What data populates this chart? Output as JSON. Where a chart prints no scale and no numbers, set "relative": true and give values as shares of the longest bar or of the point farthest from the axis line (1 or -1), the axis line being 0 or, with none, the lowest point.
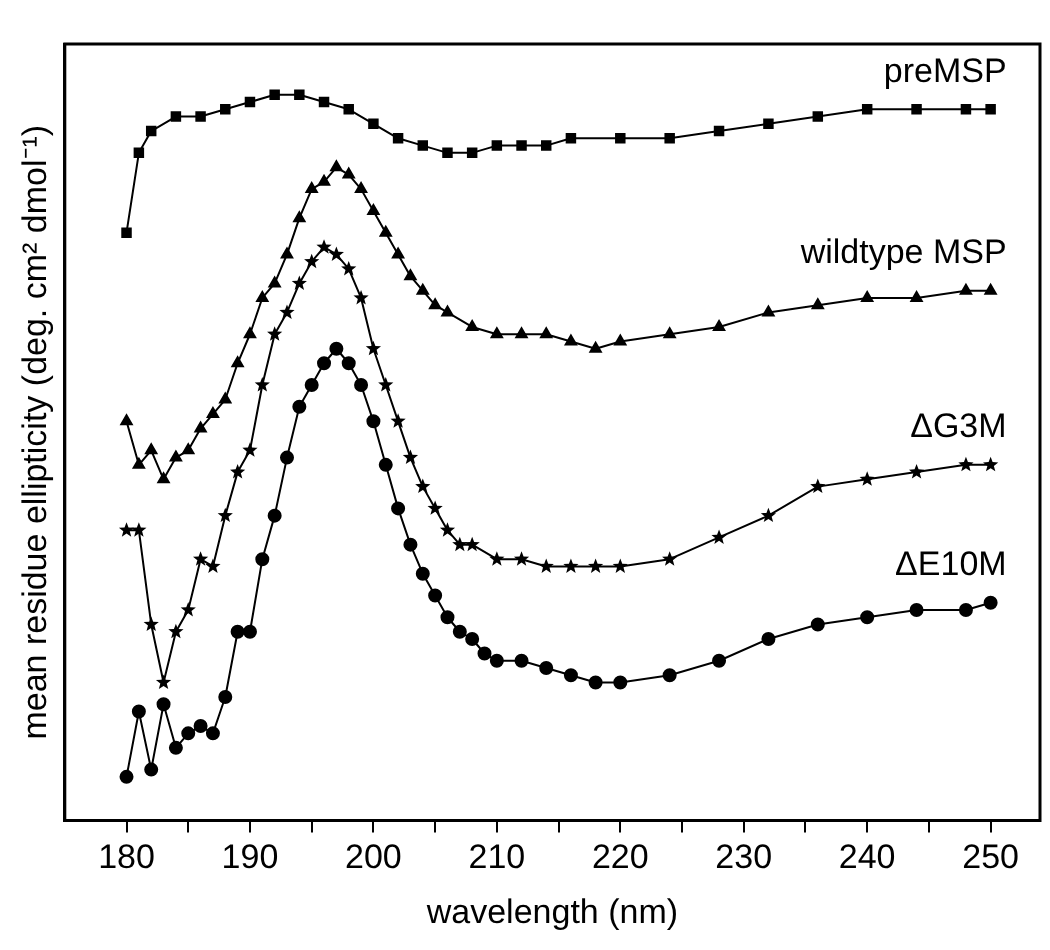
{
  "chart_data": {
    "type": "line",
    "relative": true,
    "xlabel": "wavelength (nm)",
    "ylabel": "mean residue ellipticity (deg. cm² dmol⁻¹)",
    "xlim": [
      175,
      254
    ],
    "xticks": [
      180,
      {
        "value": 185,
        "label": null
      },
      190,
      {
        "value": 195,
        "label": null
      },
      200,
      {
        "value": 205,
        "label": null
      },
      210,
      {
        "value": 215,
        "label": null
      },
      220,
      {
        "value": 225,
        "label": null
      },
      230,
      {
        "value": 235,
        "label": null
      },
      240,
      {
        "value": 245,
        "label": null
      },
      250
    ],
    "grid": false,
    "legend": false,
    "line_style": "solid",
    "series": [
      {
        "name": "preMSP",
        "color": "#000000",
        "marker": "square",
        "x": [
          180,
          181,
          182,
          184,
          186,
          188,
          190,
          192,
          194,
          196,
          198,
          200,
          202,
          204,
          206,
          208,
          210,
          212,
          214,
          216,
          220,
          224,
          228,
          232,
          236,
          240,
          244,
          248,
          250
        ],
        "values": [
          0.81,
          0.92,
          0.95,
          0.97,
          0.97,
          0.98,
          0.99,
          1.0,
          1.0,
          0.99,
          0.98,
          0.96,
          0.94,
          0.93,
          0.92,
          0.92,
          0.93,
          0.93,
          0.93,
          0.94,
          0.94,
          0.94,
          0.95,
          0.96,
          0.97,
          0.98,
          0.98,
          0.98,
          0.98
        ]
      },
      {
        "name": "wildtype MSP",
        "color": "#000000",
        "marker": "triangle",
        "x": [
          180,
          181,
          182,
          183,
          184,
          185,
          186,
          187,
          188,
          189,
          190,
          191,
          192,
          193,
          194,
          195,
          196,
          197,
          198,
          199,
          200,
          201,
          202,
          203,
          204,
          205,
          206,
          208,
          210,
          212,
          214,
          216,
          218,
          220,
          224,
          228,
          232,
          236,
          240,
          244,
          248,
          250
        ],
        "values": [
          0.55,
          0.49,
          0.51,
          0.47,
          0.5,
          0.51,
          0.54,
          0.56,
          0.58,
          0.63,
          0.67,
          0.72,
          0.74,
          0.78,
          0.83,
          0.87,
          0.88,
          0.9,
          0.89,
          0.87,
          0.84,
          0.81,
          0.78,
          0.75,
          0.73,
          0.71,
          0.7,
          0.68,
          0.67,
          0.67,
          0.67,
          0.66,
          0.65,
          0.66,
          0.67,
          0.68,
          0.7,
          0.71,
          0.72,
          0.72,
          0.73,
          0.73
        ]
      },
      {
        "name": "ΔG3M",
        "color": "#000000",
        "marker": "star",
        "x": [
          180,
          181,
          182,
          183,
          184,
          185,
          186,
          187,
          188,
          189,
          190,
          191,
          192,
          193,
          194,
          195,
          196,
          197,
          198,
          199,
          200,
          201,
          202,
          203,
          204,
          205,
          206,
          207,
          208,
          210,
          212,
          214,
          216,
          218,
          220,
          224,
          228,
          232,
          236,
          240,
          244,
          248,
          250
        ],
        "values": [
          0.4,
          0.4,
          0.27,
          0.19,
          0.26,
          0.29,
          0.36,
          0.35,
          0.42,
          0.48,
          0.51,
          0.6,
          0.67,
          0.7,
          0.74,
          0.77,
          0.79,
          0.78,
          0.76,
          0.72,
          0.65,
          0.6,
          0.55,
          0.5,
          0.46,
          0.43,
          0.4,
          0.38,
          0.38,
          0.36,
          0.36,
          0.35,
          0.35,
          0.35,
          0.35,
          0.36,
          0.39,
          0.42,
          0.46,
          0.47,
          0.48,
          0.49,
          0.49
        ]
      },
      {
        "name": "ΔE10M",
        "color": "#000000",
        "marker": "circle",
        "x": [
          180,
          181,
          182,
          183,
          184,
          185,
          186,
          187,
          188,
          189,
          190,
          191,
          192,
          193,
          194,
          195,
          196,
          197,
          198,
          199,
          200,
          201,
          202,
          203,
          204,
          205,
          206,
          207,
          208,
          209,
          210,
          212,
          214,
          216,
          218,
          220,
          224,
          228,
          232,
          236,
          240,
          244,
          248,
          250
        ],
        "values": [
          0.06,
          0.15,
          0.07,
          0.16,
          0.1,
          0.12,
          0.13,
          0.12,
          0.17,
          0.26,
          0.26,
          0.36,
          0.42,
          0.5,
          0.57,
          0.6,
          0.63,
          0.65,
          0.63,
          0.6,
          0.55,
          0.49,
          0.43,
          0.38,
          0.34,
          0.31,
          0.28,
          0.26,
          0.25,
          0.23,
          0.22,
          0.22,
          0.21,
          0.2,
          0.19,
          0.19,
          0.2,
          0.22,
          0.25,
          0.27,
          0.28,
          0.29,
          0.29,
          0.3
        ]
      }
    ]
  }
}
